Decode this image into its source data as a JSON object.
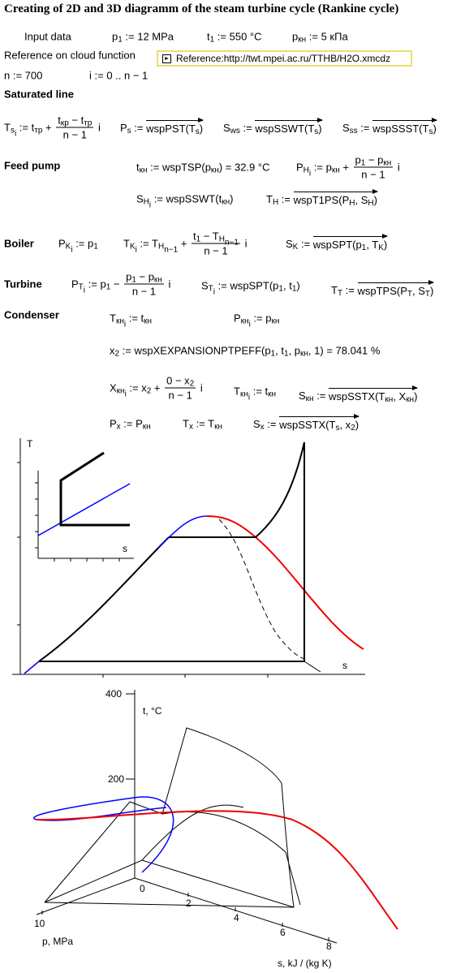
{
  "title": "Creating of 2D and 3D diagramm of the steam turbine cycle (Rankine cycle)",
  "reference": "Reference:http://twt.mpei.ac.ru/TTHB/H2O.xmcdz",
  "sections": [
    "Saturated line",
    "Feed pump",
    "Boiler",
    "Turbine",
    "Condenser"
  ],
  "items": [
    [
      "Input data"
    ],
    [
      "p",
      {
        "sub": [
          "1"
        ]
      },
      " := 12 MPa"
    ],
    [
      "t",
      {
        "sub": [
          "1"
        ]
      },
      " := 550 °C"
    ],
    [
      "p",
      {
        "sub": [
          "кн"
        ]
      },
      " := 5 кПа"
    ],
    [
      "Reference on cloud function"
    ],
    [
      "n := 700"
    ],
    [
      "i := 0 .. n − 1"
    ],
    [
      "T",
      {
        "sub": [
          "s",
          {
            "sub": [
              "i"
            ]
          }
        ]
      },
      " := t",
      {
        "sub": [
          "тр"
        ]
      },
      " + ",
      {
        "num": [
          "t",
          {
            "sub": [
              "кр"
            ]
          },
          " − t",
          {
            "sub": [
              "тр"
            ]
          }
        ],
        "den": [
          "n − 1"
        ]
      },
      " i"
    ],
    [
      "P",
      {
        "sub": [
          "s"
        ]
      },
      " := ",
      {
        "vec": [
          "wspPST(T",
          {
            "sub": [
              "s"
            ]
          },
          ")"
        ]
      }
    ],
    [
      "S",
      {
        "sub": [
          "ws"
        ]
      },
      " := ",
      {
        "vec": [
          "wspSSWT(T",
          {
            "sub": [
              "s"
            ]
          },
          ")"
        ]
      }
    ],
    [
      "S",
      {
        "sub": [
          "ss"
        ]
      },
      " := ",
      {
        "vec": [
          "wspSSST(T",
          {
            "sub": [
              "s"
            ]
          },
          ")"
        ]
      }
    ],
    [
      "t",
      {
        "sub": [
          "кн"
        ]
      },
      " := wspTSP(p",
      {
        "sub": [
          "кн"
        ]
      },
      ") = 32.9 °C"
    ],
    [
      "P",
      {
        "sub": [
          "H",
          {
            "sub": [
              "i"
            ]
          }
        ]
      },
      " := p",
      {
        "sub": [
          "кн"
        ]
      },
      " + ",
      {
        "num": [
          "p",
          {
            "sub": [
              "1"
            ]
          },
          " − p",
          {
            "sub": [
              "кн"
            ]
          }
        ],
        "den": [
          "n − 1"
        ]
      },
      " i"
    ],
    [
      "S",
      {
        "sub": [
          "H",
          {
            "sub": [
              "i"
            ]
          }
        ]
      },
      " := wspSSWT(t",
      {
        "sub": [
          "кн"
        ]
      },
      ")"
    ],
    [
      "T",
      {
        "sub": [
          "H"
        ]
      },
      " := ",
      {
        "vec": [
          "wspT1PS(P",
          {
            "sub": [
              "H"
            ]
          },
          ", S",
          {
            "sub": [
              "H"
            ]
          },
          ")"
        ]
      }
    ],
    [
      "P",
      {
        "sub": [
          "K",
          {
            "sub": [
              "i"
            ]
          }
        ]
      },
      " := p",
      {
        "sub": [
          "1"
        ]
      }
    ],
    [
      "T",
      {
        "sub": [
          "K",
          {
            "sub": [
              "i"
            ]
          }
        ]
      },
      " := T",
      {
        "sub": [
          "H",
          {
            "sub": [
              "n−1"
            ]
          }
        ]
      },
      " + ",
      {
        "num": [
          "t",
          {
            "sub": [
              "1"
            ]
          },
          " − T",
          {
            "sub": [
              "H",
              {
                "sub": [
                  "n−1"
                ]
              }
            ]
          }
        ],
        "den": [
          "n − 1"
        ]
      },
      " i"
    ],
    [
      "S",
      {
        "sub": [
          "K"
        ]
      },
      " := ",
      {
        "vec": [
          "wspSPT(p",
          {
            "sub": [
              "1"
            ]
          },
          ", T",
          {
            "sub": [
              "K"
            ]
          },
          ")"
        ]
      }
    ],
    [
      "P",
      {
        "sub": [
          "T",
          {
            "sub": [
              "i"
            ]
          }
        ]
      },
      " := p",
      {
        "sub": [
          "1"
        ]
      },
      " − ",
      {
        "num": [
          "p",
          {
            "sub": [
              "1"
            ]
          },
          " − p",
          {
            "sub": [
              "кн"
            ]
          }
        ],
        "den": [
          "n − 1"
        ]
      },
      " i"
    ],
    [
      "S",
      {
        "sub": [
          "T",
          {
            "sub": [
              "i"
            ]
          }
        ]
      },
      " := wspSPT(p",
      {
        "sub": [
          "1"
        ]
      },
      ", t",
      {
        "sub": [
          "1"
        ]
      },
      ")"
    ],
    [
      "T",
      {
        "sub": [
          "T"
        ]
      },
      " := ",
      {
        "vec": [
          "wspTPS(P",
          {
            "sub": [
              "T"
            ]
          },
          ", S",
          {
            "sub": [
              "T"
            ]
          },
          ")"
        ]
      }
    ],
    [
      "T",
      {
        "sub": [
          "кн",
          {
            "sub": [
              "i"
            ]
          }
        ]
      },
      " := t",
      {
        "sub": [
          "кн"
        ]
      }
    ],
    [
      "P",
      {
        "sub": [
          "кн",
          {
            "sub": [
              "i"
            ]
          }
        ]
      },
      " := p",
      {
        "sub": [
          "кн"
        ]
      }
    ],
    [
      "x",
      {
        "sub": [
          "2"
        ]
      },
      " := wspXEXPANSIONPTPEFF(p",
      {
        "sub": [
          "1"
        ]
      },
      ", t",
      {
        "sub": [
          "1"
        ]
      },
      ", p",
      {
        "sub": [
          "кн"
        ]
      },
      ", 1) = 78.041 %"
    ],
    [
      "X",
      {
        "sub": [
          "кн",
          {
            "sub": [
              "i"
            ]
          }
        ]
      },
      " := x",
      {
        "sub": [
          "2"
        ]
      },
      " + ",
      {
        "num": [
          "0 − x",
          {
            "sub": [
              "2"
            ]
          }
        ],
        "den": [
          "n − 1"
        ]
      },
      " i"
    ],
    [
      "T",
      {
        "sub": [
          "кн",
          {
            "sub": [
              "i"
            ]
          }
        ]
      },
      " := t",
      {
        "sub": [
          "кн"
        ]
      }
    ],
    [
      "S",
      {
        "sub": [
          "кн"
        ]
      },
      " := ",
      {
        "vec": [
          "wspSSTX(T",
          {
            "sub": [
              "кн"
            ]
          },
          ", X",
          {
            "sub": [
              "кн"
            ]
          },
          ")"
        ]
      }
    ],
    [
      "P",
      {
        "sub": [
          "x"
        ]
      },
      " := P",
      {
        "sub": [
          "кн"
        ]
      }
    ],
    [
      "T",
      {
        "sub": [
          "x"
        ]
      },
      " := T",
      {
        "sub": [
          "кн"
        ]
      }
    ],
    [
      "S",
      {
        "sub": [
          "x"
        ]
      },
      " := ",
      {
        "vec": [
          "wspSSTX(T",
          {
            "sub": [
              "s"
            ]
          },
          ", x",
          {
            "sub": [
              "2"
            ]
          },
          ")"
        ]
      }
    ]
  ],
  "diagram_2d": {
    "y_label": "T",
    "x_label": "s",
    "inset_x_label": "s"
  },
  "diagram_3d": {
    "t_ticks": [
      400,
      200
    ],
    "s_ticks": [
      0,
      2,
      4,
      6,
      8
    ],
    "p_ticks": [
      10
    ],
    "t_label": "t, °C",
    "p_label": "p, MPa",
    "s_label": "s, kJ / (kg K)"
  }
}
